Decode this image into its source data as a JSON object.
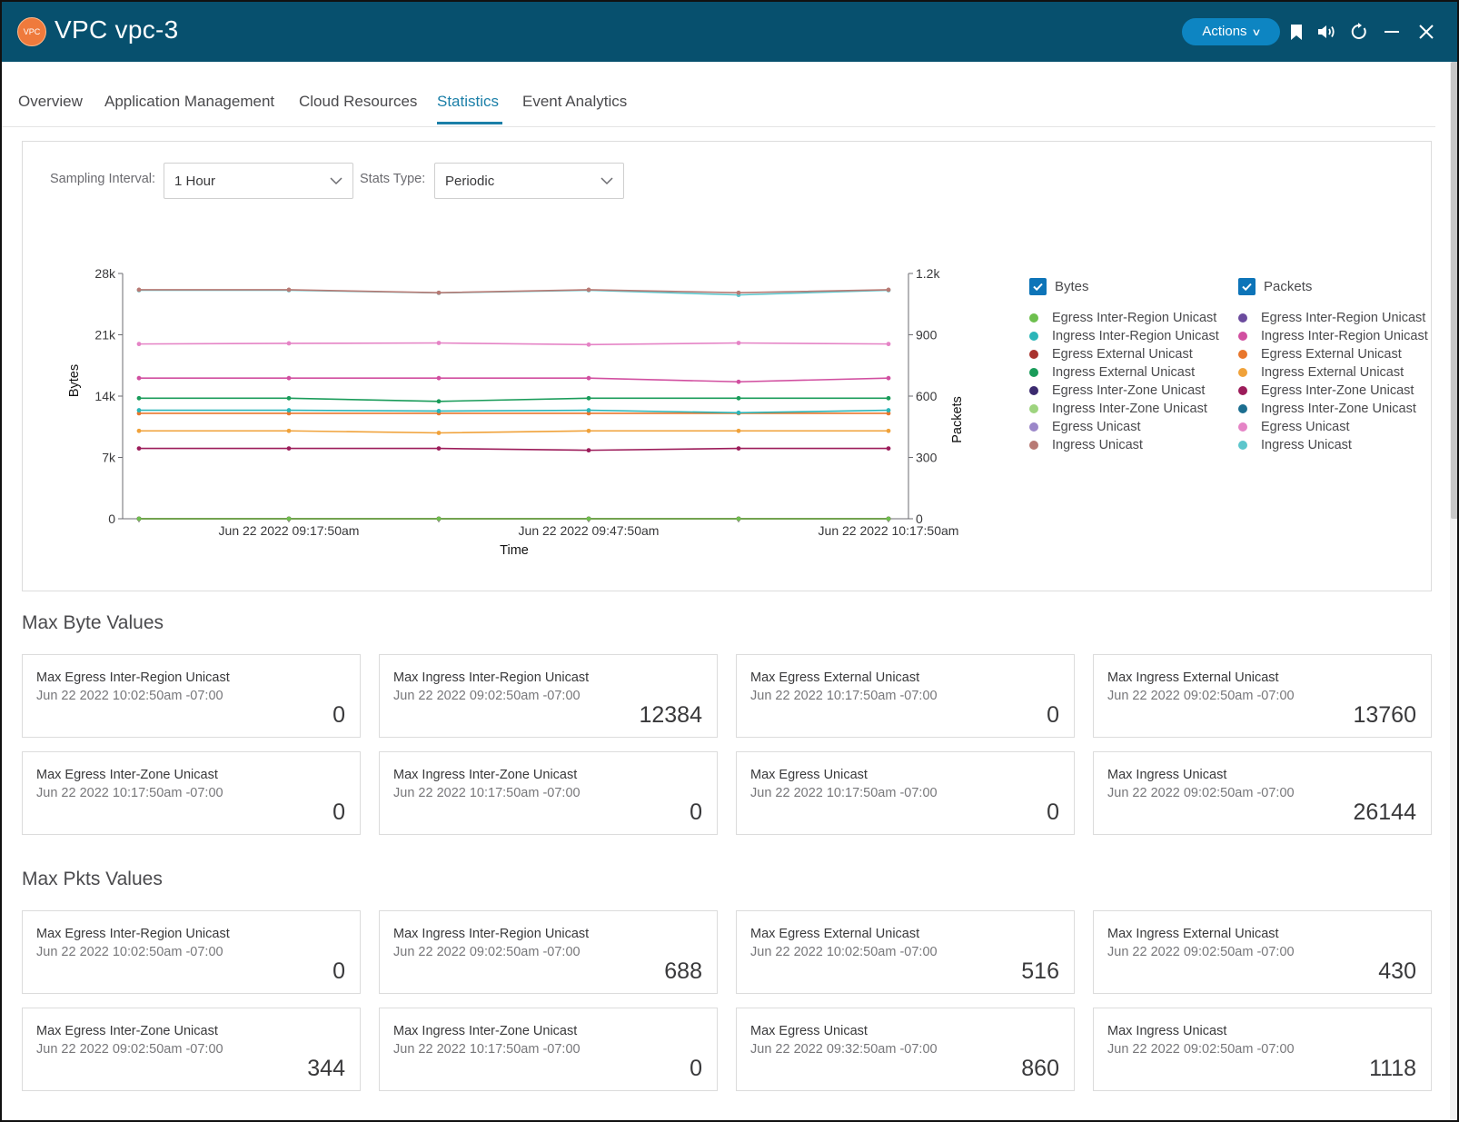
{
  "header": {
    "badge": "VPC",
    "title": "VPC vpc-3",
    "actions_label": "Actions"
  },
  "icons": {
    "badge": "vpc-icon",
    "actions_chevron": "chevron-down-icon",
    "bookmark": "bookmark-icon",
    "sound": "speaker-icon",
    "refresh": "refresh-icon",
    "minimize": "minimize-icon",
    "close": "close-icon",
    "select_chevron": "chevron-down-icon",
    "checkbox": "checkmark-icon"
  },
  "tabs": [
    {
      "label": "Overview",
      "active": false
    },
    {
      "label": "Application Management",
      "active": false
    },
    {
      "label": "Cloud Resources",
      "active": false
    },
    {
      "label": "Statistics",
      "active": true
    },
    {
      "label": "Event Analytics",
      "active": false
    }
  ],
  "controls": {
    "sampling_label": "Sampling Interval:",
    "sampling_value": "1 Hour",
    "stats_type_label": "Stats Type:",
    "stats_type_value": "Periodic"
  },
  "chart_data": {
    "type": "line",
    "xlabel": "Time",
    "ylabel_left": "Bytes",
    "ylabel_right": "Packets",
    "x": [
      "Jun 22 2022 09:02:50am",
      "Jun 22 2022 09:17:50am",
      "Jun 22 2022 09:32:50am",
      "Jun 22 2022 09:47:50am",
      "Jun 22 2022 10:02:50am",
      "Jun 22 2022 10:17:50am"
    ],
    "x_tick_labels": [
      "Jun 22 2022 09:17:50am",
      "Jun 22 2022 09:47:50am",
      "Jun 22 2022 10:17:50am"
    ],
    "y_left_range": [
      0,
      28000
    ],
    "y_left_ticks": [
      "0",
      "7k",
      "14k",
      "21k",
      "28k"
    ],
    "y_right_range": [
      0,
      1200
    ],
    "y_right_ticks": [
      "0",
      "300",
      "600",
      "900",
      "1.2k"
    ],
    "grid": false,
    "legend_position": "right",
    "legend_groups": [
      {
        "label": "Bytes",
        "checked": true
      },
      {
        "label": "Packets",
        "checked": true
      }
    ],
    "series": [
      {
        "name": "Egress Inter-Region Unicast",
        "group": "Bytes",
        "axis": "left",
        "color": "#6dbf4e",
        "values": [
          0,
          0,
          0,
          0,
          0,
          0
        ]
      },
      {
        "name": "Ingress Inter-Region Unicast",
        "group": "Bytes",
        "axis": "left",
        "color": "#2bb5b8",
        "values": [
          12384,
          12384,
          12300,
          12384,
          12100,
          12384
        ]
      },
      {
        "name": "Egress External Unicast",
        "group": "Bytes",
        "axis": "left",
        "color": "#a8322d",
        "values": [
          0,
          0,
          0,
          0,
          0,
          0
        ]
      },
      {
        "name": "Ingress External Unicast",
        "group": "Bytes",
        "axis": "left",
        "color": "#1a9c5a",
        "values": [
          13760,
          13760,
          13400,
          13760,
          13760,
          13760
        ]
      },
      {
        "name": "Egress Inter-Zone Unicast",
        "group": "Bytes",
        "axis": "left",
        "color": "#3b2a6f",
        "values": [
          0,
          0,
          0,
          0,
          0,
          0
        ]
      },
      {
        "name": "Ingress Inter-Zone Unicast",
        "group": "Bytes",
        "axis": "left",
        "color": "#9ed47f",
        "values": [
          0,
          0,
          0,
          0,
          0,
          0
        ]
      },
      {
        "name": "Egress Unicast",
        "group": "Bytes",
        "axis": "left",
        "color": "#9b87c9",
        "values": [
          0,
          0,
          0,
          0,
          0,
          0
        ]
      },
      {
        "name": "Ingress Unicast",
        "group": "Bytes",
        "axis": "left",
        "color": "#b87a74",
        "values": [
          26144,
          26144,
          25800,
          26144,
          25800,
          26144
        ]
      },
      {
        "name": "Egress Inter-Region Unicast",
        "group": "Packets",
        "axis": "right",
        "color": "#6b4b9e",
        "values": [
          0,
          0,
          0,
          0,
          0,
          0
        ]
      },
      {
        "name": "Ingress Inter-Region Unicast",
        "group": "Packets",
        "axis": "right",
        "color": "#d14fa0",
        "values": [
          688,
          688,
          688,
          688,
          670,
          688
        ]
      },
      {
        "name": "Egress External Unicast",
        "group": "Packets",
        "axis": "right",
        "color": "#e8762c",
        "values": [
          516,
          516,
          516,
          516,
          516,
          516
        ]
      },
      {
        "name": "Ingress External Unicast",
        "group": "Packets",
        "axis": "right",
        "color": "#f0a23a",
        "values": [
          430,
          430,
          420,
          430,
          430,
          430
        ]
      },
      {
        "name": "Egress Inter-Zone Unicast",
        "group": "Packets",
        "axis": "right",
        "color": "#9c1c5a",
        "values": [
          344,
          344,
          344,
          335,
          344,
          344
        ]
      },
      {
        "name": "Ingress Inter-Zone Unicast",
        "group": "Packets",
        "axis": "right",
        "color": "#1c6e90",
        "values": [
          0,
          0,
          0,
          0,
          0,
          0
        ]
      },
      {
        "name": "Egress Unicast",
        "group": "Packets",
        "axis": "right",
        "color": "#e584c6",
        "values": [
          855,
          858,
          860,
          852,
          860,
          855
        ]
      },
      {
        "name": "Ingress Unicast",
        "group": "Packets",
        "axis": "right",
        "color": "#5cc6cc",
        "values": [
          1118,
          1118,
          1105,
          1118,
          1095,
          1118
        ]
      }
    ]
  },
  "max_bytes": {
    "title": "Max Byte Values",
    "cards": [
      {
        "name": "Max Egress Inter-Region Unicast",
        "time": "Jun 22 2022 10:02:50am -07:00",
        "value": "0"
      },
      {
        "name": "Max Ingress Inter-Region Unicast",
        "time": "Jun 22 2022 09:02:50am -07:00",
        "value": "12384"
      },
      {
        "name": "Max Egress External Unicast",
        "time": "Jun 22 2022 10:17:50am -07:00",
        "value": "0"
      },
      {
        "name": "Max Ingress External Unicast",
        "time": "Jun 22 2022 09:02:50am -07:00",
        "value": "13760"
      },
      {
        "name": "Max Egress Inter-Zone Unicast",
        "time": "Jun 22 2022 10:17:50am -07:00",
        "value": "0"
      },
      {
        "name": "Max Ingress Inter-Zone Unicast",
        "time": "Jun 22 2022 10:17:50am -07:00",
        "value": "0"
      },
      {
        "name": "Max Egress Unicast",
        "time": "Jun 22 2022 10:17:50am -07:00",
        "value": "0"
      },
      {
        "name": "Max Ingress Unicast",
        "time": "Jun 22 2022 09:02:50am -07:00",
        "value": "26144"
      }
    ]
  },
  "max_pkts": {
    "title": "Max Pkts Values",
    "cards": [
      {
        "name": "Max Egress Inter-Region Unicast",
        "time": "Jun 22 2022 10:02:50am -07:00",
        "value": "0"
      },
      {
        "name": "Max Ingress Inter-Region Unicast",
        "time": "Jun 22 2022 09:02:50am -07:00",
        "value": "688"
      },
      {
        "name": "Max Egress External Unicast",
        "time": "Jun 22 2022 10:02:50am -07:00",
        "value": "516"
      },
      {
        "name": "Max Ingress External Unicast",
        "time": "Jun 22 2022 09:02:50am -07:00",
        "value": "430"
      },
      {
        "name": "Max Egress Inter-Zone Unicast",
        "time": "Jun 22 2022 09:02:50am -07:00",
        "value": "344"
      },
      {
        "name": "Max Ingress Inter-Zone Unicast",
        "time": "Jun 22 2022 10:17:50am -07:00",
        "value": "0"
      },
      {
        "name": "Max Egress Unicast",
        "time": "Jun 22 2022 09:32:50am -07:00",
        "value": "860"
      },
      {
        "name": "Max Ingress Unicast",
        "time": "Jun 22 2022 09:02:50am -07:00",
        "value": "1118"
      }
    ]
  }
}
